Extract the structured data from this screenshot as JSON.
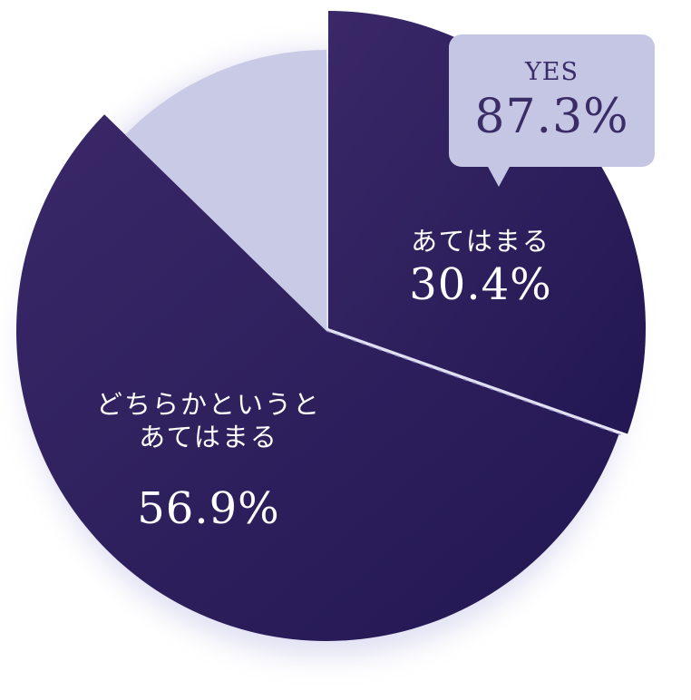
{
  "chart_data": {
    "type": "pie",
    "start_angle_deg": 0,
    "direction": "clockwise",
    "slices": [
      {
        "label": "あてはまる",
        "value": 30.4,
        "display": "30.4%",
        "color": "#291c58",
        "exploded": true
      },
      {
        "label": "どちらかというと\nあてはまる",
        "value": 56.9,
        "display": "56.9%",
        "color": "#2c1f5e",
        "exploded": false
      },
      {
        "label": "",
        "value": 12.7,
        "display": "",
        "color": "#c9cae6",
        "exploded": false
      }
    ],
    "callout": {
      "label": "YES",
      "value": "87.3%",
      "color": "#c5c6e4",
      "text_color": "#3a2c66"
    }
  }
}
